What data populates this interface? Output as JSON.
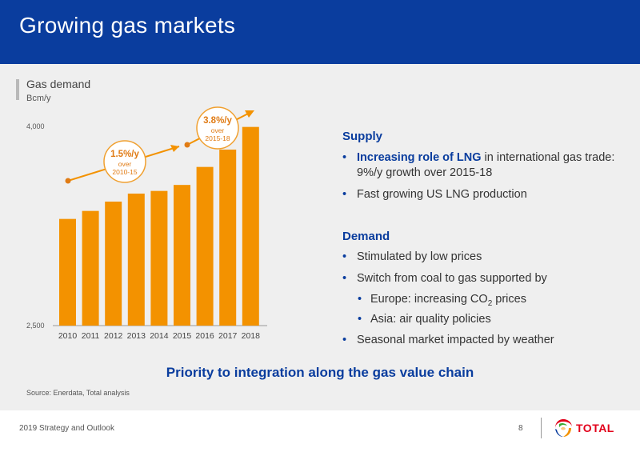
{
  "slide": {
    "title": "Growing gas markets",
    "tagline": "Priority to integration along the gas value chain",
    "source": "Source: Enerdata, Total analysis",
    "footer": "2019 Strategy and Outlook",
    "page_number": "8",
    "logo_text": "TOTAL"
  },
  "supply": {
    "heading": "Supply",
    "bullets": [
      {
        "bold": "Increasing role of LNG",
        "rest": " in international gas trade: 9%/y growth over 2015-18"
      },
      {
        "text": "Fast growing US LNG production"
      }
    ]
  },
  "demand": {
    "heading": "Demand",
    "bullets": [
      "Stimulated by low prices",
      "Switch from coal to gas supported by",
      "Seasonal market impacted by weather"
    ],
    "sub_bullets": [
      {
        "prefix": "Europe: increasing CO",
        "sub": "2",
        "suffix": " prices"
      },
      {
        "text": "Asia: air quality policies"
      }
    ]
  },
  "chart_data": {
    "type": "bar",
    "title": "Gas demand",
    "ylabel": "Bcm/y",
    "ylim": [
      2500,
      4000
    ],
    "ytick_labels": [
      "4,000",
      "2,500"
    ],
    "categories": [
      "2010",
      "2011",
      "2012",
      "2013",
      "2014",
      "2015",
      "2016",
      "2017",
      "2018"
    ],
    "values": [
      3300,
      3360,
      3430,
      3490,
      3510,
      3555,
      3690,
      3820,
      3990
    ],
    "bar_color": "#f39200",
    "annotations": [
      {
        "rate": "1.5%/y",
        "line1": "over",
        "line2": "2010-15"
      },
      {
        "rate": "3.8%/y",
        "line1": "over",
        "line2": "2015-18"
      }
    ]
  },
  "colors": {
    "brand_blue": "#0a3d9e",
    "accent_orange": "#f39200",
    "background": "#efefef",
    "logo_red": "#e2001a"
  }
}
